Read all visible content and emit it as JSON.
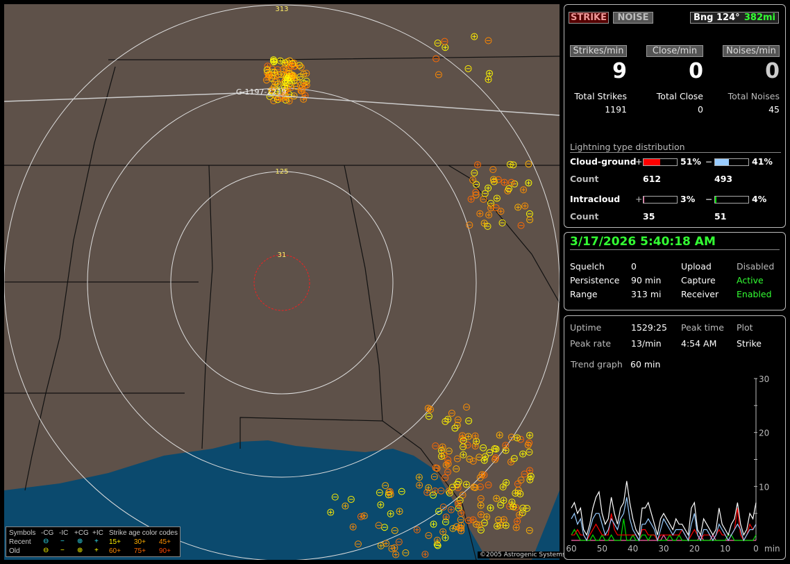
{
  "map": {
    "range_labels": [
      "313",
      "125",
      "31"
    ],
    "track_label": "G-1197-2219",
    "copyright": "©2005 Astrogenic Systems",
    "legend": {
      "headers": [
        "Symbols",
        "-CG",
        "-IC",
        "+CG",
        "+IC",
        "Strike age color codes"
      ],
      "rows": [
        {
          "label": "Recent",
          "color": "#33e0f0",
          "ages": [
            "15+",
            "30+",
            "45+"
          ],
          "age_colors": [
            "#ffee00",
            "#ffb000",
            "#ff9000"
          ]
        },
        {
          "label": "Old",
          "color": "#ffff00",
          "ages": [
            "60+",
            "75+",
            "90+"
          ],
          "age_colors": [
            "#ff8800",
            "#ff6a00",
            "#ff4400"
          ]
        }
      ]
    }
  },
  "top": {
    "strike_btn": "STRIKE",
    "noise_btn": "NOISE",
    "bearing": "Bng 124°",
    "distance": "382mi",
    "rate_labels": [
      "Strikes/min",
      "Close/min",
      "Noises/min"
    ],
    "rates": [
      "9",
      "0",
      "0"
    ],
    "total_labels": [
      "Total Strikes",
      "Total Close",
      "Total Noises"
    ],
    "totals": [
      "1191",
      "0",
      "45"
    ],
    "dist_title": "Lightning type distribution",
    "cg_label": "Cloud-ground",
    "ic_label": "Intracloud",
    "count_label": "Count",
    "plus": "+",
    "minus": "−",
    "cg_pos_pct": "51%",
    "cg_neg_pct": "41%",
    "ic_pos_pct": "3%",
    "ic_neg_pct": "4%",
    "cg_pos_count": "612",
    "cg_neg_count": "493",
    "ic_pos_count": "35",
    "ic_neg_count": "51",
    "fills": {
      "cg_pos": 51,
      "cg_neg": 41,
      "ic_pos": 3,
      "ic_neg": 4
    },
    "colors": {
      "cg_pos": "#ff0000",
      "cg_neg": "#99ccff",
      "ic_pos": "#ff66aa",
      "ic_neg": "#00dd00"
    }
  },
  "status": {
    "datetime": "3/17/2026 5:40:18 AM",
    "rows": [
      [
        "Squelch",
        "0",
        "Upload",
        "Disabled"
      ],
      [
        "Persistence",
        "90 min",
        "Capture",
        "Active"
      ],
      [
        "Range",
        "313 mi",
        "Receiver",
        "Enabled"
      ]
    ]
  },
  "stats": {
    "uptime_label": "Uptime",
    "uptime": "1529:25",
    "peak_time_label": "Peak time",
    "plot_label": "Plot",
    "peak_rate_label": "Peak rate",
    "peak_rate": "13/min",
    "peak_time": "4:54 AM",
    "plot": "Strike",
    "trend_label": "Trend graph",
    "trend": "60 min"
  },
  "chart_data": {
    "type": "line",
    "x_ticks": [
      "60",
      "50",
      "40",
      "30",
      "20",
      "10",
      "0"
    ],
    "x_unit": "min",
    "y_ticks": [
      "10",
      "20",
      "30"
    ],
    "ylim": [
      0,
      30
    ],
    "xlim": [
      60,
      0
    ],
    "x": [
      60,
      59,
      58,
      57,
      56,
      55,
      54,
      53,
      52,
      51,
      50,
      49,
      48,
      47,
      46,
      45,
      44,
      43,
      42,
      41,
      40,
      39,
      38,
      37,
      36,
      35,
      34,
      33,
      32,
      31,
      30,
      29,
      28,
      27,
      26,
      25,
      24,
      23,
      22,
      21,
      20,
      19,
      18,
      17,
      16,
      15,
      14,
      13,
      12,
      11,
      10,
      9,
      8,
      7,
      6,
      5,
      4,
      3,
      2,
      1,
      0
    ],
    "series": [
      {
        "key": "total",
        "color": "#ffffff",
        "values": [
          6,
          7,
          5,
          6,
          2,
          1,
          3,
          6,
          8,
          9,
          5,
          3,
          4,
          8,
          5,
          3,
          6,
          7,
          11,
          7,
          4,
          2,
          1,
          6,
          6,
          7,
          5,
          3,
          1,
          4,
          5,
          4,
          3,
          2,
          4,
          3,
          3,
          2,
          1,
          6,
          7,
          2,
          1,
          4,
          3,
          2,
          1,
          2,
          6,
          3,
          2,
          1,
          3,
          4,
          7,
          3,
          1,
          2,
          5,
          4,
          7
        ]
      },
      {
        "key": "cg_neg",
        "color": "#99ccff",
        "values": [
          4,
          5,
          3,
          4,
          1,
          0,
          2,
          4,
          5,
          5,
          3,
          1,
          2,
          4,
          3,
          2,
          4,
          5,
          8,
          4,
          2,
          1,
          0,
          3,
          3,
          4,
          3,
          2,
          0,
          2,
          4,
          3,
          2,
          1,
          2,
          2,
          2,
          1,
          0,
          3,
          5,
          1,
          0,
          2,
          2,
          1,
          0,
          1,
          3,
          2,
          1,
          0,
          1,
          2,
          3,
          2,
          0,
          1,
          2,
          2,
          3
        ]
      },
      {
        "key": "cg_pos",
        "color": "#ff0000",
        "values": [
          1,
          1,
          2,
          1,
          1,
          0,
          1,
          2,
          3,
          2,
          1,
          1,
          1,
          5,
          2,
          1,
          1,
          1,
          1,
          1,
          1,
          1,
          0,
          2,
          2,
          1,
          1,
          1,
          0,
          1,
          1,
          1,
          1,
          1,
          1,
          1,
          2,
          1,
          0,
          1,
          2,
          1,
          0,
          1,
          1,
          1,
          0,
          1,
          2,
          1,
          1,
          0,
          1,
          2,
          6,
          1,
          0,
          1,
          3,
          2,
          3
        ]
      },
      {
        "key": "ic_neg",
        "color": "#00dd00",
        "values": [
          1,
          2,
          1,
          0,
          0,
          0,
          0,
          1,
          0,
          0,
          1,
          0,
          0,
          1,
          0,
          0,
          0,
          4,
          0,
          0,
          1,
          0,
          0,
          1,
          1,
          0,
          1,
          1,
          0,
          0,
          0,
          0,
          1,
          0,
          0,
          1,
          0,
          0,
          0,
          0,
          0,
          0,
          0,
          0,
          0,
          0,
          0,
          0,
          0,
          0,
          0,
          1,
          1,
          0,
          0,
          0,
          0,
          0,
          0,
          0,
          1
        ]
      },
      {
        "key": "ic_pos",
        "color": "#ff66aa",
        "values": [
          0,
          0,
          0,
          0,
          0,
          0,
          0,
          0,
          0,
          0,
          0,
          0,
          0,
          0,
          0,
          0,
          0,
          0,
          0,
          0,
          1,
          1,
          0,
          0,
          0,
          0,
          0,
          0,
          0,
          0,
          1,
          0,
          0,
          0,
          0,
          0,
          0,
          0,
          0,
          0,
          0,
          0,
          1,
          0,
          0,
          0,
          1,
          0,
          0,
          0,
          0,
          0,
          0,
          0,
          0,
          0,
          0,
          0,
          0,
          0,
          0
        ]
      }
    ]
  }
}
